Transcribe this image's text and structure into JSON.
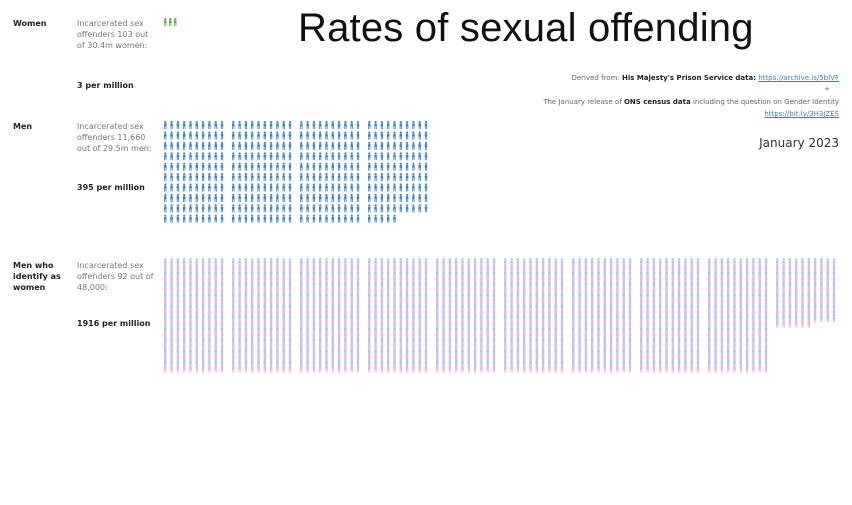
{
  "title": "Rates of sexual offending",
  "sources": {
    "line1_prefix": "Derived from:",
    "line1_bold": "His Majesty's Prison Service data:",
    "line1_link": "https://archive.is/5bIVF",
    "plus": "+",
    "line2_prefix": "The January release of",
    "line2_bold": "ONS census data",
    "line2_suffix": "including the question on Gender Identity",
    "line2_link": "https://bit.ly/3H3jZES"
  },
  "date": "January 2023",
  "colors": {
    "women": "#5ab03c",
    "men": "#3a86c8",
    "tw_blue": "#a9c6ee",
    "tw_pink": "#e9b4dd"
  },
  "chart_data": {
    "type": "pictogram",
    "unit": "incarcerated sex offenders per million",
    "rows": [
      {
        "label": "Women",
        "description": "Incarcerated sex offenders 103 out of 30.4m women:",
        "rate_text": "3 per million",
        "rate": 3
      },
      {
        "label": "Men",
        "description": "Incarcerated sex offenders 11,660 out of 29.5m men:",
        "rate_text": "395 per million",
        "rate": 395
      },
      {
        "label": "Men who identify as women",
        "description": "Incarcerated sex offenders 92 out of 48,000:",
        "rate_text": "1916 per million",
        "rate": 1916
      }
    ]
  }
}
